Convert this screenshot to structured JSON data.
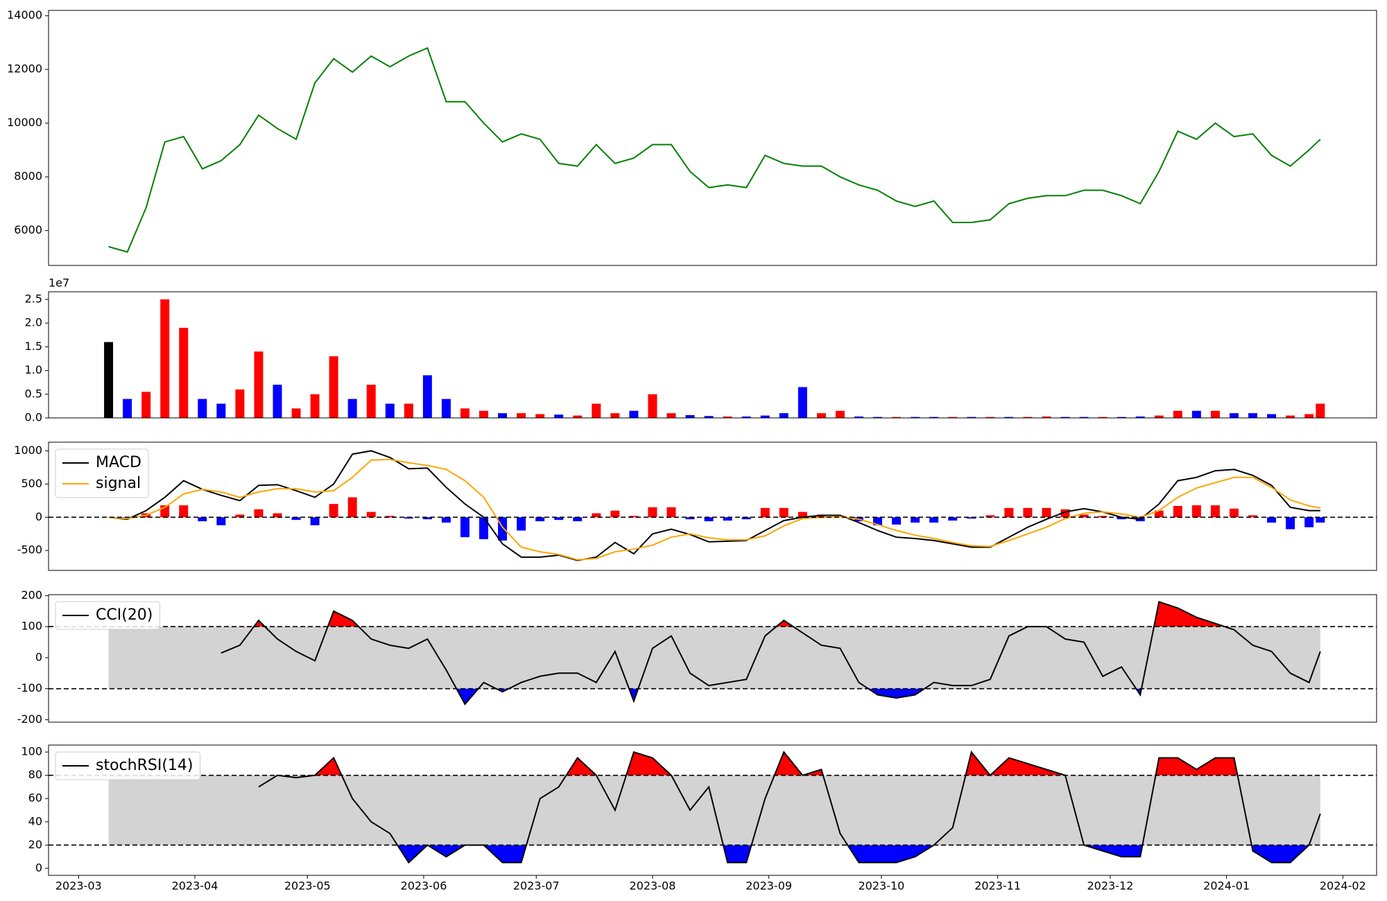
{
  "x": [
    "2023-03-09",
    "2023-03-14",
    "2023-03-19",
    "2023-03-24",
    "2023-03-29",
    "2023-04-03",
    "2023-04-08",
    "2023-04-13",
    "2023-04-18",
    "2023-04-23",
    "2023-04-28",
    "2023-05-03",
    "2023-05-08",
    "2023-05-13",
    "2023-05-18",
    "2023-05-23",
    "2023-05-28",
    "2023-06-02",
    "2023-06-07",
    "2023-06-12",
    "2023-06-17",
    "2023-06-22",
    "2023-06-27",
    "2023-07-02",
    "2023-07-07",
    "2023-07-12",
    "2023-07-17",
    "2023-07-22",
    "2023-07-27",
    "2023-08-01",
    "2023-08-06",
    "2023-08-11",
    "2023-08-16",
    "2023-08-21",
    "2023-08-26",
    "2023-08-31",
    "2023-09-05",
    "2023-09-10",
    "2023-09-15",
    "2023-09-20",
    "2023-09-25",
    "2023-09-30",
    "2023-10-05",
    "2023-10-10",
    "2023-10-15",
    "2023-10-20",
    "2023-10-25",
    "2023-10-30",
    "2023-11-04",
    "2023-11-09",
    "2023-11-14",
    "2023-11-19",
    "2023-11-24",
    "2023-11-29",
    "2023-12-04",
    "2023-12-09",
    "2023-12-14",
    "2023-12-19",
    "2023-12-24",
    "2023-12-29",
    "2024-01-03",
    "2024-01-08",
    "2024-01-13",
    "2024-01-18",
    "2024-01-23",
    "2024-01-26"
  ],
  "xlim": [
    "2023-02-21",
    "2024-02-10"
  ],
  "xticks": [
    "2023-03",
    "2023-04",
    "2023-05",
    "2023-06",
    "2023-07",
    "2023-08",
    "2023-09",
    "2023-10",
    "2023-11",
    "2023-12",
    "2024-01",
    "2024-02"
  ],
  "chart_data": [
    {
      "type": "line",
      "ylim": [
        4700,
        14200
      ],
      "yticks": [
        6000,
        8000,
        10000,
        12000,
        14000
      ],
      "series": [
        {
          "color": "green",
          "values": [
            5400,
            5200,
            6850,
            9300,
            9500,
            8300,
            8600,
            9200,
            10300,
            9800,
            9400,
            11500,
            12400,
            11900,
            12500,
            12100,
            12500,
            12800,
            10800,
            10800,
            10000,
            9300,
            9600,
            9400,
            8500,
            8400,
            9200,
            8500,
            8700,
            9200,
            9200,
            8200,
            7600,
            7700,
            7600,
            8800,
            8500,
            8400,
            8400,
            8000,
            7700,
            7500,
            7100,
            6900,
            7100,
            6300,
            6300,
            6400,
            7000,
            7200,
            7300,
            7300,
            7500,
            7500,
            7300,
            7000,
            8200,
            9700,
            9400,
            10000,
            9500,
            9600,
            8800,
            8400,
            9000,
            9400
          ]
        }
      ]
    },
    {
      "type": "bar",
      "ylim": [
        0,
        26600000
      ],
      "offset_label": "1e7",
      "yticks": [
        {
          "value": 0,
          "label": "0.0"
        },
        {
          "value": 5000000,
          "label": "0.5"
        },
        {
          "value": 10000000,
          "label": "1.0"
        },
        {
          "value": 15000000,
          "label": "1.5"
        },
        {
          "value": 20000000,
          "label": "2.0"
        },
        {
          "value": 25000000,
          "label": "2.5"
        }
      ],
      "series": [
        {
          "kind": "bar",
          "values": [
            16000000,
            4000000,
            5500000,
            25000000,
            19000000,
            4000000,
            3000000,
            6000000,
            14000000,
            7000000,
            2000000,
            5000000,
            13000000,
            4000000,
            7000000,
            3000000,
            3000000,
            9000000,
            4000000,
            2000000,
            1500000,
            1000000,
            1000000,
            800000,
            700000,
            500000,
            3000000,
            1000000,
            1500000,
            5000000,
            1000000,
            600000,
            400000,
            300000,
            300000,
            500000,
            1000000,
            6500000,
            1000000,
            1500000,
            300000,
            200000,
            200000,
            200000,
            200000,
            200000,
            200000,
            200000,
            200000,
            200000,
            300000,
            200000,
            200000,
            200000,
            200000,
            300000,
            500000,
            1500000,
            1500000,
            1500000,
            1000000,
            1000000,
            800000,
            500000,
            800000,
            3000000
          ],
          "colors": [
            "black",
            "blue",
            "red",
            "red",
            "red",
            "blue",
            "blue",
            "red",
            "red",
            "blue",
            "red",
            "red",
            "red",
            "blue",
            "red",
            "blue",
            "red",
            "blue",
            "blue",
            "red",
            "red",
            "blue",
            "red",
            "red",
            "blue",
            "red",
            "red",
            "red",
            "blue",
            "red",
            "red",
            "blue",
            "blue",
            "red",
            "blue",
            "blue",
            "blue",
            "blue",
            "red",
            "red",
            "blue",
            "blue",
            "red",
            "blue",
            "blue",
            "red",
            "blue",
            "red",
            "blue",
            "red",
            "red",
            "blue",
            "blue",
            "red",
            "blue",
            "blue",
            "red",
            "red",
            "blue",
            "red",
            "blue",
            "blue",
            "blue",
            "red",
            "red",
            "red"
          ]
        }
      ]
    },
    {
      "type": "line",
      "ylim": [
        -800,
        1130
      ],
      "yticks": [
        -500,
        0,
        500,
        1000
      ],
      "hlines": [
        0
      ],
      "legend": "upper left",
      "series": [
        {
          "kind": "bar",
          "up_color": "red",
          "down_color": "blue",
          "values": [
            0,
            -10,
            60,
            180,
            180,
            -60,
            -120,
            40,
            120,
            60,
            -40,
            -120,
            200,
            300,
            80,
            20,
            -20,
            -30,
            -80,
            -300,
            -330,
            -350,
            -200,
            -60,
            -40,
            -60,
            60,
            100,
            20,
            150,
            150,
            -30,
            -60,
            -50,
            -30,
            140,
            140,
            80,
            40,
            20,
            -60,
            -120,
            -110,
            -80,
            -80,
            -50,
            -20,
            30,
            140,
            140,
            140,
            120,
            40,
            20,
            -30,
            -60,
            100,
            170,
            180,
            180,
            130,
            30,
            -80,
            -180,
            -150,
            -80
          ]
        },
        {
          "name": "MACD",
          "color": "black",
          "values": [
            0,
            -30,
            100,
            300,
            550,
            420,
            330,
            250,
            480,
            490,
            400,
            300,
            500,
            950,
            1000,
            900,
            730,
            740,
            450,
            200,
            0,
            -400,
            -600,
            -600,
            -570,
            -650,
            -600,
            -380,
            -550,
            -250,
            -180,
            -260,
            -370,
            -360,
            -350,
            -200,
            -50,
            0,
            30,
            30,
            -80,
            -200,
            -300,
            -320,
            -350,
            -400,
            -450,
            -450,
            -300,
            -150,
            -30,
            80,
            130,
            80,
            0,
            -30,
            200,
            550,
            600,
            700,
            720,
            630,
            480,
            150,
            100,
            100
          ]
        },
        {
          "name": "signal",
          "color": "orange",
          "values": [
            0,
            -20,
            30,
            150,
            350,
            420,
            380,
            300,
            380,
            430,
            430,
            380,
            400,
            600,
            860,
            870,
            820,
            780,
            720,
            550,
            300,
            -150,
            -450,
            -520,
            -560,
            -640,
            -620,
            -520,
            -480,
            -420,
            -300,
            -250,
            -310,
            -340,
            -340,
            -280,
            -130,
            -20,
            0,
            10,
            -30,
            -110,
            -200,
            -270,
            -320,
            -380,
            -430,
            -440,
            -350,
            -250,
            -150,
            -20,
            60,
            80,
            50,
            0,
            100,
            300,
            440,
            520,
            600,
            600,
            450,
            260,
            170,
            140
          ]
        }
      ]
    },
    {
      "type": "line",
      "ylim": [
        -208,
        203
      ],
      "yticks": [
        -200,
        -100,
        0,
        100,
        200
      ],
      "thresholds": [
        -100,
        100
      ],
      "band_color": "lightgray",
      "above_color": "red",
      "below_color": "blue",
      "legend": "upper left",
      "series": [
        {
          "name": "CCI(20)",
          "color": "black",
          "values": [
            null,
            null,
            null,
            null,
            null,
            null,
            15,
            40,
            120,
            60,
            20,
            -10,
            150,
            120,
            60,
            40,
            30,
            60,
            -40,
            -150,
            -80,
            -110,
            -80,
            -60,
            -50,
            -50,
            -80,
            20,
            -140,
            30,
            70,
            -50,
            -90,
            -80,
            -70,
            70,
            120,
            80,
            40,
            30,
            -80,
            -120,
            -130,
            -120,
            -80,
            -90,
            -90,
            -70,
            70,
            100,
            100,
            60,
            50,
            -60,
            -30,
            -120,
            180,
            160,
            130,
            110,
            90,
            40,
            20,
            -50,
            -80,
            20
          ]
        }
      ]
    },
    {
      "type": "line",
      "ylim": [
        -6,
        106
      ],
      "yticks": [
        0,
        20,
        40,
        60,
        80,
        100
      ],
      "thresholds": [
        20,
        80
      ],
      "band_color": "lightgray",
      "above_color": "red",
      "below_color": "blue",
      "legend": "upper left",
      "series": [
        {
          "name": "stochRSI(14)",
          "color": "black",
          "values": [
            null,
            null,
            null,
            null,
            null,
            null,
            null,
            null,
            70,
            80,
            78,
            80,
            95,
            60,
            40,
            30,
            5,
            20,
            10,
            20,
            20,
            5,
            5,
            60,
            70,
            95,
            80,
            50,
            100,
            95,
            80,
            50,
            70,
            5,
            5,
            60,
            100,
            80,
            85,
            30,
            5,
            5,
            5,
            10,
            20,
            35,
            100,
            80,
            95,
            90,
            85,
            80,
            20,
            15,
            10,
            10,
            95,
            95,
            85,
            95,
            95,
            15,
            5,
            5,
            20,
            47
          ]
        }
      ]
    }
  ]
}
